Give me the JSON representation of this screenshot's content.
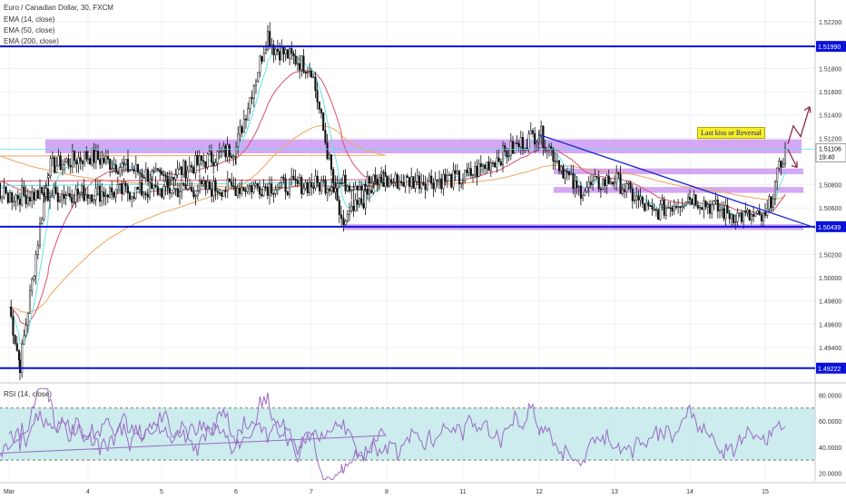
{
  "header": {
    "title": "Euro / Canadian Dollar, 30, FXCM",
    "ema14": "EMA (14, close)",
    "ema50": "EMA (50, close)",
    "ema200": "EMA (200, close)"
  },
  "rsi_label": "RSI (14, close)",
  "annotation": "Last kiss or Reversal",
  "current_price": "1.51106",
  "countdown": "19:40",
  "colors": {
    "level_line": "#0b12d9",
    "zone": "#c58bf0",
    "trendline": "#2430d0",
    "ema14": "#5fe3e6",
    "ema50": "#d9506a",
    "ema200": "#f0a45c",
    "rsi_line": "#9a6bc4",
    "rsi_band": "#bfe7ea",
    "arrow": "#8a1a3a",
    "annotation_bg": "#f6ef26"
  },
  "chart_data": {
    "type": "candlestick",
    "title": "Euro / Canadian Dollar, 30, FXCM",
    "price_axis": {
      "ticks": [
        "1.52200",
        "1.51800",
        "1.51600",
        "1.51400",
        "1.51200",
        "1.50800",
        "1.50600",
        "1.50200",
        "1.50000",
        "1.49800",
        "1.49600",
        "1.49400"
      ],
      "ylim": [
        1.4915,
        1.5235
      ],
      "position": "right"
    },
    "x_ticks": [
      "Mar",
      "4",
      "5",
      "6",
      "7",
      "8",
      "11",
      "12",
      "13",
      "14",
      "15"
    ],
    "levels": [
      {
        "price": 1.5199,
        "label": "1.51990"
      },
      {
        "price": 1.50439,
        "label": "1.50439"
      },
      {
        "price": 1.49222,
        "label": "1.49222"
      }
    ],
    "zones": [
      {
        "low": 1.5107,
        "high": 1.5119
      },
      {
        "low": 1.5089,
        "high": 1.5094
      },
      {
        "low": 1.5073,
        "high": 1.5078
      },
      {
        "low": 1.5041,
        "high": 1.5046
      }
    ],
    "trendline": {
      "from": {
        "x": "12",
        "y": 1.5123
      },
      "to": {
        "x": "15+",
        "y": 1.5051
      }
    },
    "series_path": [
      {
        "x": "Mar",
        "y": 1.4975
      },
      {
        "x": "Mar+",
        "y": 1.4925
      },
      {
        "x": "3.5",
        "y": 1.5095
      },
      {
        "x": "4",
        "y": 1.5105
      },
      {
        "x": "5",
        "y": 1.5085
      },
      {
        "x": "6",
        "y": 1.5112
      },
      {
        "x": "6+",
        "y": 1.521
      },
      {
        "x": "6.5",
        "y": 1.5198
      },
      {
        "x": "7",
        "y": 1.518
      },
      {
        "x": "7.4",
        "y": 1.5045
      },
      {
        "x": "8",
        "y": 1.509
      },
      {
        "x": "9",
        "y": 1.507
      },
      {
        "x": "11",
        "y": 1.5085
      },
      {
        "x": "12",
        "y": 1.5125
      },
      {
        "x": "12.5",
        "y": 1.5075
      },
      {
        "x": "13",
        "y": 1.5085
      },
      {
        "x": "13.5",
        "y": 1.5055
      },
      {
        "x": "14",
        "y": 1.507
      },
      {
        "x": "14.5",
        "y": 1.5055
      },
      {
        "x": "15",
        "y": 1.505
      },
      {
        "x": "15+",
        "y": 1.5111
      }
    ],
    "rsi": {
      "name": "RSI (14, close)",
      "ticks": [
        "80.0000",
        "60.0000",
        "40.0000",
        "20.0000"
      ],
      "ylim": [
        14,
        88
      ],
      "bands": [
        30,
        70
      ]
    }
  }
}
